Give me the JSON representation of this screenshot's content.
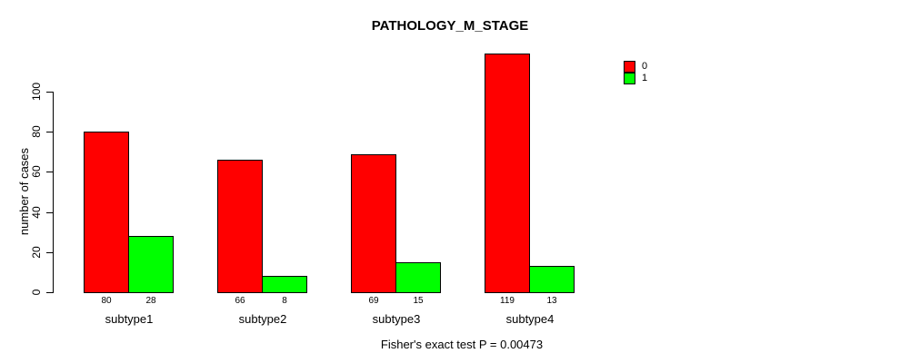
{
  "title": "PATHOLOGY_M_STAGE",
  "footer": "Fisher's exact test P = 0.00473",
  "chart_data": {
    "type": "bar",
    "title": "PATHOLOGY_M_STAGE",
    "xlabel": "",
    "ylabel": "number of cases",
    "categories": [
      "subtype1",
      "subtype2",
      "subtype3",
      "subtype4"
    ],
    "series": [
      {
        "name": "0",
        "color": "#ff0000",
        "values": [
          80,
          66,
          69,
          119
        ]
      },
      {
        "name": "1",
        "color": "#00ff00",
        "values": [
          28,
          8,
          15,
          13
        ]
      }
    ],
    "bar_value_labels": [
      [
        "80",
        "28"
      ],
      [
        "66",
        "8"
      ],
      [
        "69",
        "15"
      ],
      [
        "119",
        "13"
      ]
    ],
    "yticks": [
      0,
      20,
      40,
      60,
      80,
      100
    ],
    "ylim": [
      0,
      100
    ],
    "grid": false,
    "legend_position": "top-right",
    "legend_entries": [
      "0",
      "1"
    ],
    "annotation": "Fisher's exact test P = 0.00473",
    "axis_color": "#000000",
    "background_color": "#ffffff"
  }
}
